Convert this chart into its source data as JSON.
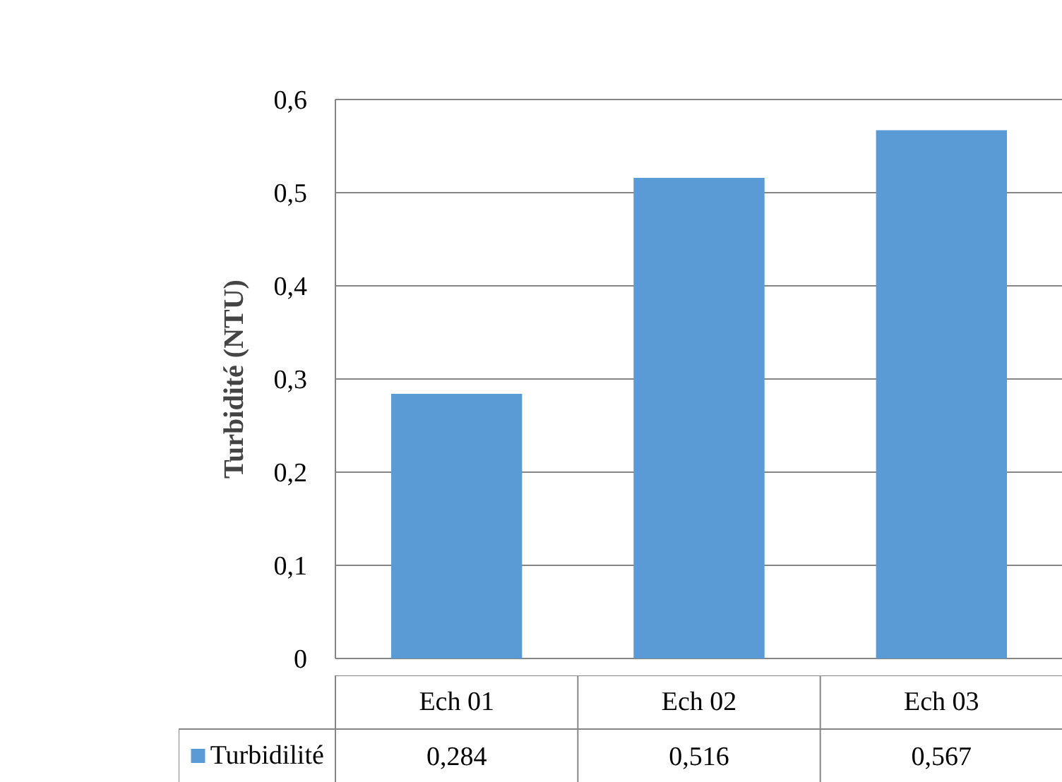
{
  "chart_data": {
    "type": "bar",
    "ylabel": "Turbidité (NTU)",
    "categories": [
      "Ech 01",
      "Ech 02",
      "Ech 03"
    ],
    "series": [
      {
        "name": "Turbidilité",
        "color": "#5b9bd5",
        "values": [
          0.284,
          0.516,
          0.567
        ],
        "value_labels": [
          "0,284",
          "0,516",
          "0,567"
        ]
      }
    ],
    "ylim": [
      0,
      0.6
    ],
    "yticks": [
      {
        "value": 0,
        "label": "0"
      },
      {
        "value": 0.1,
        "label": "0,1"
      },
      {
        "value": 0.2,
        "label": "0,2"
      },
      {
        "value": 0.3,
        "label": "0,3"
      },
      {
        "value": 0.4,
        "label": "0,4"
      },
      {
        "value": 0.5,
        "label": "0,5"
      },
      {
        "value": 0.6,
        "label": "0,6"
      }
    ],
    "grid": "y",
    "legend": "bottom"
  }
}
